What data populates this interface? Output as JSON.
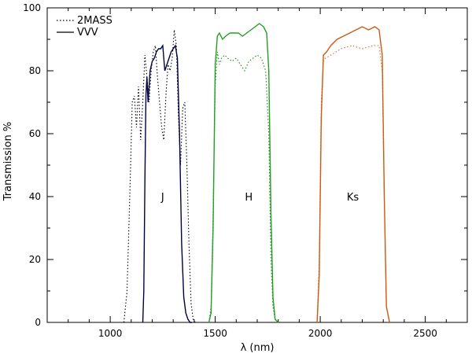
{
  "chart_data": {
    "type": "line",
    "title": "",
    "xlabel": "λ (nm)",
    "ylabel": "Transmission %",
    "xlim": [
      700,
      2700
    ],
    "ylim": [
      0,
      100
    ],
    "x_ticks": [
      1000,
      1500,
      2000,
      2500
    ],
    "y_ticks": [
      0,
      20,
      40,
      60,
      80,
      100
    ],
    "grid": false,
    "legend": {
      "placement": "top-left",
      "entries": [
        {
          "label": "2MASS",
          "style": "dotted"
        },
        {
          "label": "VVV",
          "style": "solid"
        }
      ]
    },
    "band_labels": [
      {
        "text": "J",
        "x": 1250,
        "y": 40
      },
      {
        "text": "H",
        "x": 1660,
        "y": 40
      },
      {
        "text": "Ks",
        "x": 2155,
        "y": 40
      }
    ],
    "series": [
      {
        "name": "2MASS",
        "band": "J",
        "style": "dotted",
        "color": "#000000",
        "x": [
          1065,
          1080,
          1095,
          1105,
          1115,
          1125,
          1135,
          1145,
          1155,
          1165,
          1175,
          1185,
          1195,
          1205,
          1215,
          1225,
          1235,
          1245,
          1255,
          1265,
          1275,
          1285,
          1295,
          1305,
          1315,
          1325,
          1335,
          1345,
          1355,
          1365,
          1375,
          1385,
          1395,
          1405
        ],
        "y": [
          0,
          10,
          45,
          70,
          72,
          62,
          75,
          58,
          70,
          85,
          78,
          70,
          80,
          86,
          88,
          78,
          70,
          62,
          58,
          72,
          82,
          80,
          84,
          93,
          88,
          65,
          50,
          68,
          70,
          50,
          25,
          6,
          1,
          0
        ]
      },
      {
        "name": "2MASS",
        "band": "H",
        "style": "dotted",
        "color": "#1a8a1a",
        "x": [
          1470,
          1480,
          1490,
          1500,
          1510,
          1520,
          1530,
          1545,
          1560,
          1580,
          1600,
          1620,
          1640,
          1660,
          1680,
          1700,
          1720,
          1740,
          1755,
          1765,
          1775,
          1785,
          1800
        ],
        "y": [
          0,
          5,
          35,
          75,
          86,
          82,
          84,
          85,
          84,
          83,
          84,
          82,
          80,
          83,
          84,
          85,
          84,
          80,
          60,
          20,
          5,
          1,
          0
        ]
      },
      {
        "name": "2MASS",
        "band": "Ks",
        "style": "dotted",
        "color": "#d2691e",
        "x": [
          1985,
          1995,
          2005,
          2015,
          2025,
          2050,
          2100,
          2150,
          2200,
          2250,
          2280,
          2295,
          2305,
          2315,
          2330
        ],
        "y": [
          0,
          20,
          70,
          83,
          84,
          85,
          87,
          88,
          87,
          88,
          88,
          80,
          40,
          5,
          0
        ]
      },
      {
        "name": "VVV",
        "band": "J",
        "style": "solid",
        "color": "#000040",
        "x": [
          1155,
          1160,
          1165,
          1170,
          1175,
          1180,
          1190,
          1200,
          1210,
          1220,
          1230,
          1240,
          1250,
          1260,
          1270,
          1280,
          1290,
          1300,
          1310,
          1320,
          1330,
          1340,
          1350,
          1360,
          1370,
          1380,
          1390
        ],
        "y": [
          0,
          10,
          45,
          72,
          78,
          70,
          80,
          83,
          84,
          86,
          87,
          87,
          88,
          80,
          82,
          84,
          86,
          87,
          88,
          84,
          60,
          25,
          8,
          3,
          1,
          0,
          0
        ]
      },
      {
        "name": "VVV",
        "band": "H",
        "style": "solid",
        "color": "#22a022",
        "x": [
          1470,
          1480,
          1490,
          1500,
          1510,
          1520,
          1535,
          1550,
          1570,
          1590,
          1610,
          1630,
          1650,
          1670,
          1690,
          1710,
          1730,
          1745,
          1755,
          1765,
          1775,
          1785,
          1800
        ],
        "y": [
          0,
          3,
          30,
          82,
          91,
          92,
          90,
          91,
          92,
          92,
          92,
          91,
          92,
          93,
          94,
          95,
          94,
          92,
          80,
          35,
          8,
          1,
          0
        ]
      },
      {
        "name": "VVV",
        "band": "Ks",
        "style": "solid",
        "color": "#cc5a10",
        "x": [
          1985,
          1995,
          2005,
          2015,
          2030,
          2050,
          2080,
          2110,
          2140,
          2170,
          2200,
          2230,
          2260,
          2280,
          2295,
          2305,
          2315,
          2330
        ],
        "y": [
          0,
          15,
          65,
          85,
          86,
          88,
          90,
          91,
          92,
          93,
          94,
          93,
          94,
          93,
          85,
          40,
          5,
          0
        ]
      }
    ]
  }
}
